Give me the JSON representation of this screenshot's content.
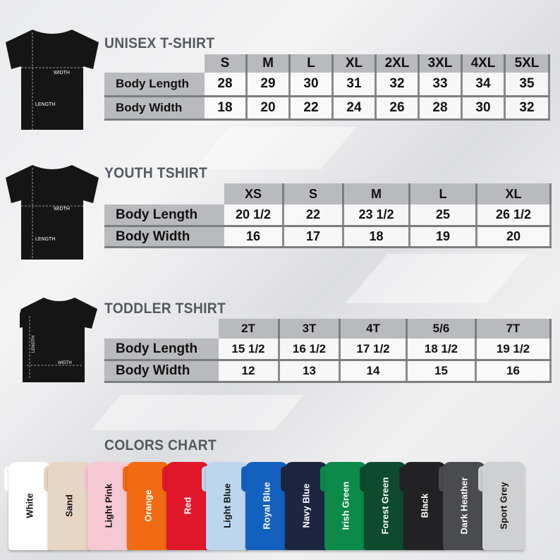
{
  "tables": [
    {
      "id": "unisex",
      "title": "UNISEX T-SHIRT",
      "sizes": [
        "S",
        "M",
        "L",
        "XL",
        "2XL",
        "3XL",
        "4XL",
        "5XL"
      ],
      "rows": [
        {
          "label": "Body Length",
          "values": [
            "28",
            "29",
            "30",
            "31",
            "32",
            "33",
            "34",
            "35"
          ]
        },
        {
          "label": "Body Width",
          "values": [
            "18",
            "20",
            "22",
            "24",
            "26",
            "28",
            "30",
            "32"
          ]
        }
      ]
    },
    {
      "id": "youth",
      "title": "YOUTH TSHIRT",
      "sizes": [
        "XS",
        "S",
        "M",
        "L",
        "XL"
      ],
      "rows": [
        {
          "label": "Body Length",
          "values": [
            "20 1/2",
            "22",
            "23 1/2",
            "25",
            "26 1/2"
          ]
        },
        {
          "label": "Body Width",
          "values": [
            "16",
            "17",
            "18",
            "19",
            "20"
          ]
        }
      ]
    },
    {
      "id": "toddler",
      "title": "TODDLER TSHIRT",
      "sizes": [
        "2T",
        "3T",
        "4T",
        "5/6",
        "7T"
      ],
      "rows": [
        {
          "label": "Body Length",
          "values": [
            "15 1/2",
            "16 1/2",
            "17 1/2",
            "18 1/2",
            "19 1/2"
          ]
        },
        {
          "label": "Body Width",
          "values": [
            "12",
            "13",
            "14",
            "15",
            "16"
          ]
        }
      ]
    }
  ],
  "diagram_labels": {
    "width": "WIDTH",
    "length": "LENGTH"
  },
  "colors_chart": {
    "title": "COLORS CHART",
    "colors": [
      {
        "name": "White",
        "hex": "#ffffff",
        "text": "#111111"
      },
      {
        "name": "Sand",
        "hex": "#e8d6c4",
        "text": "#111111"
      },
      {
        "name": "Light Pink",
        "hex": "#f5c8d3",
        "text": "#111111"
      },
      {
        "name": "Orange",
        "hex": "#f26a12",
        "text": "#ffffff"
      },
      {
        "name": "Red",
        "hex": "#e0182a",
        "text": "#ffffff"
      },
      {
        "name": "Light Blue",
        "hex": "#bcd6ef",
        "text": "#111111"
      },
      {
        "name": "Royal Blue",
        "hex": "#1460bf",
        "text": "#ffffff"
      },
      {
        "name": "Navy Blue",
        "hex": "#1c2640",
        "text": "#ffffff"
      },
      {
        "name": "Irish Green",
        "hex": "#0b8a4a",
        "text": "#ffffff"
      },
      {
        "name": "Forest Green",
        "hex": "#0d4a2e",
        "text": "#ffffff"
      },
      {
        "name": "Black",
        "hex": "#222224",
        "text": "#ffffff"
      },
      {
        "name": "Dark Heather",
        "hex": "#4a4b4e",
        "text": "#ffffff"
      },
      {
        "name": "Sport Grey",
        "hex": "#cfd0d2",
        "text": "#111111"
      }
    ]
  }
}
